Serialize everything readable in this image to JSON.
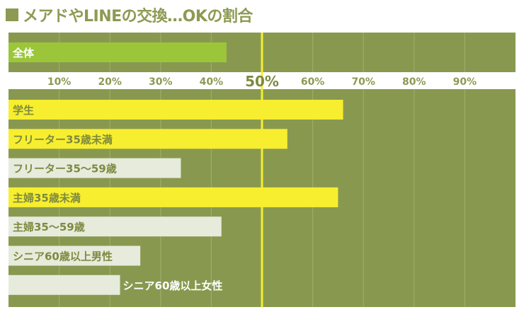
{
  "chart_data": {
    "type": "bar",
    "orientation": "horizontal",
    "title": "メアドやLINEの交換…OKの割合",
    "xlim": [
      0,
      100
    ],
    "x_ticks": [
      "10%",
      "20%",
      "30%",
      "40%",
      "50%",
      "60%",
      "70%",
      "80%",
      "90%"
    ],
    "x_tick_values": [
      10,
      20,
      30,
      40,
      50,
      60,
      70,
      80,
      90
    ],
    "highlight_line": 50,
    "grid": true,
    "overall": {
      "label": "全体",
      "value": 43
    },
    "categories": [
      "学生",
      "フリーター35歳未満",
      "フリーター35～59歳",
      "主婦35歳未満",
      "主婦35～59歳",
      "シニア60歳以上男性",
      "シニア60歳以上女性"
    ],
    "values": [
      66,
      55,
      34,
      65,
      42,
      26,
      22
    ],
    "bar_colors": [
      "#f7ee2f",
      "#f7ee2f",
      "#e6ebdc",
      "#f7ee2f",
      "#e6ebdc",
      "#e6ebdc",
      "#e6ebdc"
    ]
  },
  "colors": {
    "background": "#88994f",
    "overall_bar": "#9bc63a",
    "highlight": "#f7ee2f",
    "light_bar": "#e6ebdc",
    "tick_text": "#8c9a52",
    "title": "#8c9a52"
  }
}
